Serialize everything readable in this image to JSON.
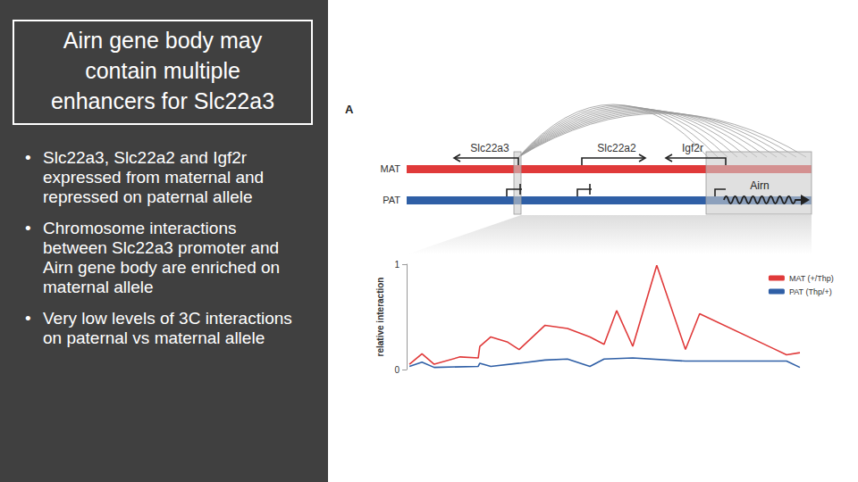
{
  "slide": {
    "title": [
      "Airn gene body may",
      "contain multiple",
      "enhancers for Slc22a3"
    ],
    "bullets": [
      "Slc22a3, Slc22a2 and Igf2r expressed from maternal and repressed on paternal allele",
      "Chromosome interactions between Slc22a3 promoter and Airn gene body are enriched on maternal allele",
      "Very low levels of 3C interactions on paternal vs maternal allele"
    ]
  },
  "diagram": {
    "panel_label": "A",
    "genes": [
      "Slc22a3",
      "Slc22a2",
      "Igf2r"
    ],
    "alleles": [
      "MAT",
      "PAT"
    ],
    "transcript": "Airn"
  },
  "chart_data": {
    "type": "line",
    "y_label": "relative interaction",
    "xlim": [
      0,
      100
    ],
    "ylim": [
      0,
      1
    ],
    "yticks": [
      0,
      1
    ],
    "grid": false,
    "legend": "upper right",
    "tick_labels": "y",
    "series": [
      {
        "name": "MAT (+/Thp)",
        "color": "#e03a3a",
        "x": [
          0.7,
          3.9,
          7.0,
          13.6,
          18.2,
          18.6,
          21.4,
          25.7,
          28.6,
          35.2,
          40.9,
          46.6,
          50.2,
          53.4,
          57.5,
          63.6,
          70.9,
          74.5,
          93.2,
          96.6,
          100
        ],
        "values": [
          0.05,
          0.15,
          0.05,
          0.12,
          0.11,
          0.22,
          0.31,
          0.26,
          0.19,
          0.42,
          0.39,
          0.31,
          0.24,
          0.56,
          0.22,
          0.99,
          0.19,
          0.53,
          0.2,
          0.14,
          0.16
        ]
      },
      {
        "name": "PAT (Thp/+)",
        "color": "#2f5fa6",
        "x": [
          0.7,
          3.9,
          7.0,
          18.2,
          18.6,
          21.4,
          28.6,
          35.2,
          40.9,
          46.6,
          50.2,
          57.5,
          70.9,
          93.2,
          96.6,
          100
        ],
        "values": [
          0.03,
          0.07,
          0.02,
          0.03,
          0.06,
          0.03,
          0.06,
          0.09,
          0.1,
          0.03,
          0.1,
          0.11,
          0.08,
          0.08,
          0.08,
          0.02
        ]
      }
    ]
  }
}
